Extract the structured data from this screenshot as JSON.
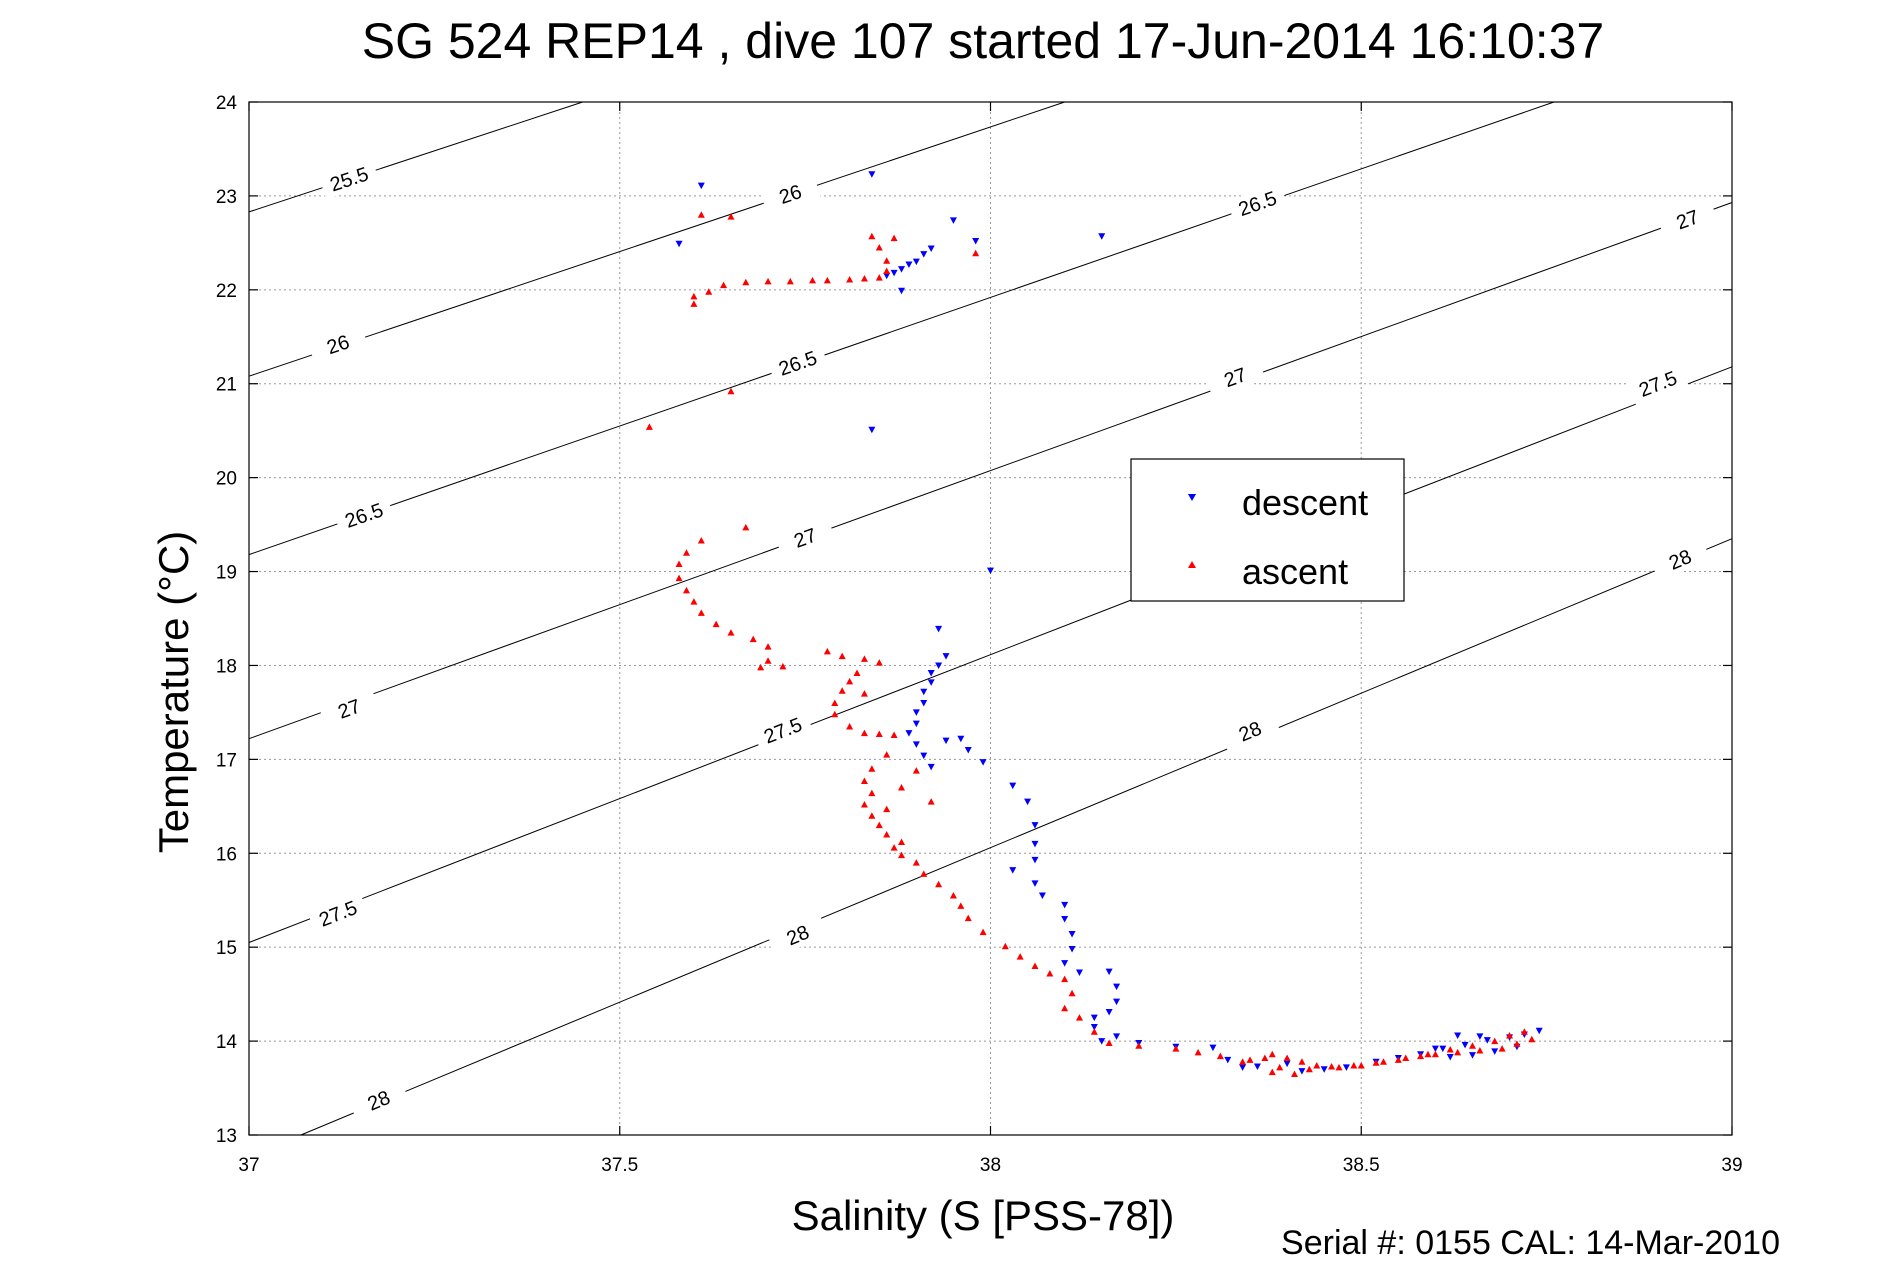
{
  "chart_data": {
    "type": "scatter",
    "title": "SG 524   REP14  , dive 107 started 17-Jun-2014 16:10:37",
    "xlabel": "Salinity (S [PSS-78])",
    "ylabel": "Temperature (°C)",
    "footer": "Serial #: 0155  CAL: 14-Mar-2010",
    "xlim": [
      37,
      39
    ],
    "ylim": [
      13,
      24
    ],
    "grid": true,
    "legend_position": "center-right",
    "xticks": [
      {
        "value": 37,
        "label": "37"
      },
      {
        "value": 37.5,
        "label": "37.5"
      },
      {
        "value": 38,
        "label": "38"
      },
      {
        "value": 38.5,
        "label": "38.5"
      },
      {
        "value": 39,
        "label": "39"
      }
    ],
    "yticks": [
      {
        "value": 13,
        "label": "13"
      },
      {
        "value": 14,
        "label": "14"
      },
      {
        "value": 15,
        "label": "15"
      },
      {
        "value": 16,
        "label": "16"
      },
      {
        "value": 17,
        "label": "17"
      },
      {
        "value": 18,
        "label": "18"
      },
      {
        "value": 19,
        "label": "19"
      },
      {
        "value": 20,
        "label": "20"
      },
      {
        "value": 21,
        "label": "21"
      },
      {
        "value": 22,
        "label": "22"
      },
      {
        "value": 23,
        "label": "23"
      },
      {
        "value": 24,
        "label": "24"
      }
    ],
    "density_contours": [
      {
        "value": "25.5",
        "points": [
          [
            37.0,
            22.83
          ],
          [
            37.45,
            24.0
          ]
        ],
        "labels": [
          [
            37.135,
            23.18
          ]
        ]
      },
      {
        "value": "26",
        "points": [
          [
            37.0,
            21.08
          ],
          [
            38.1,
            24.0
          ]
        ],
        "labels": [
          [
            37.12,
            21.42
          ],
          [
            37.73,
            23.02
          ]
        ]
      },
      {
        "value": "26.5",
        "points": [
          [
            37.0,
            19.18
          ],
          [
            38.76,
            24.0
          ]
        ],
        "labels": [
          [
            37.155,
            19.6
          ],
          [
            37.74,
            21.22
          ],
          [
            38.36,
            22.92
          ]
        ]
      },
      {
        "value": "27",
        "points": [
          [
            37.0,
            17.22
          ],
          [
            39.0,
            22.93
          ]
        ],
        "labels": [
          [
            37.135,
            17.54
          ],
          [
            37.75,
            19.36
          ],
          [
            38.33,
            21.07
          ],
          [
            38.94,
            22.75
          ]
        ]
      },
      {
        "value": "27.5",
        "points": [
          [
            37.0,
            15.05
          ],
          [
            39.0,
            21.18
          ]
        ],
        "labels": [
          [
            37.12,
            15.36
          ],
          [
            37.72,
            17.31
          ],
          [
            38.9,
            21.0
          ]
        ]
      },
      {
        "value": "28",
        "points": [
          [
            37.07,
            13.0
          ],
          [
            39.0,
            19.35
          ]
        ],
        "labels": [
          [
            37.175,
            13.37
          ],
          [
            37.74,
            15.13
          ],
          [
            38.35,
            17.3
          ],
          [
            38.93,
            19.13
          ]
        ]
      }
    ],
    "series": [
      {
        "name": "descent",
        "color": "#0000ff",
        "marker": "triangle-down",
        "points": [
          [
            37.58,
            22.49
          ],
          [
            37.61,
            23.11
          ],
          [
            37.84,
            23.23
          ],
          [
            37.86,
            22.15
          ],
          [
            37.87,
            22.18
          ],
          [
            37.88,
            22.22
          ],
          [
            37.89,
            22.27
          ],
          [
            37.9,
            22.3
          ],
          [
            37.91,
            22.38
          ],
          [
            37.92,
            22.44
          ],
          [
            37.95,
            22.74
          ],
          [
            37.98,
            22.52
          ],
          [
            38.15,
            22.57
          ],
          [
            37.88,
            21.99
          ],
          [
            37.84,
            20.51
          ],
          [
            37.96,
            17.22
          ],
          [
            37.93,
            18.39
          ],
          [
            38.0,
            19.01
          ],
          [
            37.94,
            18.1
          ],
          [
            37.93,
            18.0
          ],
          [
            37.92,
            17.92
          ],
          [
            37.92,
            17.82
          ],
          [
            37.91,
            17.72
          ],
          [
            37.91,
            17.6
          ],
          [
            37.9,
            17.5
          ],
          [
            37.9,
            17.38
          ],
          [
            37.89,
            17.28
          ],
          [
            37.9,
            17.16
          ],
          [
            37.91,
            17.04
          ],
          [
            37.92,
            16.92
          ],
          [
            37.94,
            17.2
          ],
          [
            37.97,
            17.1
          ],
          [
            37.99,
            16.97
          ],
          [
            38.03,
            16.72
          ],
          [
            38.05,
            16.55
          ],
          [
            38.06,
            16.3
          ],
          [
            38.06,
            16.1
          ],
          [
            38.06,
            15.93
          ],
          [
            38.03,
            15.82
          ],
          [
            38.06,
            15.68
          ],
          [
            38.07,
            15.55
          ],
          [
            38.1,
            15.45
          ],
          [
            38.1,
            15.3
          ],
          [
            38.11,
            15.14
          ],
          [
            38.11,
            14.98
          ],
          [
            38.1,
            14.83
          ],
          [
            38.12,
            14.73
          ],
          [
            38.16,
            14.74
          ],
          [
            38.17,
            14.58
          ],
          [
            38.17,
            14.42
          ],
          [
            38.16,
            14.31
          ],
          [
            38.14,
            14.25
          ],
          [
            38.14,
            14.15
          ],
          [
            38.15,
            14.0
          ],
          [
            38.17,
            14.05
          ],
          [
            38.2,
            13.98
          ],
          [
            38.25,
            13.94
          ],
          [
            38.3,
            13.93
          ],
          [
            38.32,
            13.8
          ],
          [
            38.34,
            13.72
          ],
          [
            38.36,
            13.73
          ],
          [
            38.4,
            13.76
          ],
          [
            38.42,
            13.68
          ],
          [
            38.45,
            13.7
          ],
          [
            38.48,
            13.72
          ],
          [
            38.52,
            13.78
          ],
          [
            38.55,
            13.82
          ],
          [
            38.58,
            13.86
          ],
          [
            38.61,
            13.92
          ],
          [
            38.64,
            13.96
          ],
          [
            38.67,
            14.01
          ],
          [
            38.7,
            14.04
          ],
          [
            38.72,
            14.07
          ],
          [
            38.74,
            14.11
          ],
          [
            38.71,
            13.94
          ],
          [
            38.68,
            13.89
          ],
          [
            38.65,
            13.85
          ],
          [
            38.62,
            13.83
          ],
          [
            38.6,
            13.92
          ],
          [
            38.63,
            14.06
          ],
          [
            38.66,
            14.05
          ]
        ]
      },
      {
        "name": "ascent",
        "color": "#ff0000",
        "marker": "triangle-up",
        "points": [
          [
            37.61,
            22.8
          ],
          [
            37.65,
            22.78
          ],
          [
            37.6,
            21.85
          ],
          [
            37.6,
            21.93
          ],
          [
            37.62,
            21.98
          ],
          [
            37.64,
            22.05
          ],
          [
            37.67,
            22.08
          ],
          [
            37.7,
            22.09
          ],
          [
            37.73,
            22.09
          ],
          [
            37.76,
            22.1
          ],
          [
            37.78,
            22.1
          ],
          [
            37.81,
            22.11
          ],
          [
            37.83,
            22.12
          ],
          [
            37.85,
            22.13
          ],
          [
            37.86,
            22.2
          ],
          [
            37.86,
            22.31
          ],
          [
            37.84,
            22.57
          ],
          [
            37.85,
            22.45
          ],
          [
            37.87,
            22.55
          ],
          [
            37.98,
            22.39
          ],
          [
            37.65,
            20.92
          ],
          [
            37.54,
            20.54
          ],
          [
            37.67,
            19.47
          ],
          [
            37.61,
            19.33
          ],
          [
            37.59,
            19.2
          ],
          [
            37.58,
            19.08
          ],
          [
            37.58,
            18.93
          ],
          [
            37.59,
            18.8
          ],
          [
            37.6,
            18.68
          ],
          [
            37.61,
            18.56
          ],
          [
            37.63,
            18.44
          ],
          [
            37.65,
            18.35
          ],
          [
            37.68,
            18.28
          ],
          [
            37.7,
            18.2
          ],
          [
            37.7,
            18.05
          ],
          [
            37.69,
            17.98
          ],
          [
            37.72,
            17.99
          ],
          [
            37.78,
            18.15
          ],
          [
            37.8,
            18.1
          ],
          [
            37.83,
            18.07
          ],
          [
            37.82,
            17.92
          ],
          [
            37.81,
            17.83
          ],
          [
            37.8,
            17.73
          ],
          [
            37.79,
            17.6
          ],
          [
            37.79,
            17.48
          ],
          [
            37.81,
            17.35
          ],
          [
            37.83,
            17.28
          ],
          [
            37.85,
            17.27
          ],
          [
            37.87,
            17.26
          ],
          [
            37.85,
            18.03
          ],
          [
            37.83,
            17.7
          ],
          [
            37.86,
            17.05
          ],
          [
            37.84,
            16.9
          ],
          [
            37.83,
            16.77
          ],
          [
            37.84,
            16.64
          ],
          [
            37.83,
            16.52
          ],
          [
            37.84,
            16.4
          ],
          [
            37.85,
            16.3
          ],
          [
            37.86,
            16.2
          ],
          [
            37.87,
            16.06
          ],
          [
            37.88,
            15.98
          ],
          [
            37.9,
            15.9
          ],
          [
            37.91,
            15.78
          ],
          [
            37.93,
            15.67
          ],
          [
            37.95,
            15.55
          ],
          [
            37.96,
            15.44
          ],
          [
            37.97,
            15.31
          ],
          [
            37.99,
            15.16
          ],
          [
            38.02,
            15.01
          ],
          [
            38.04,
            14.9
          ],
          [
            38.06,
            14.8
          ],
          [
            38.08,
            14.72
          ],
          [
            38.1,
            14.66
          ],
          [
            38.11,
            14.51
          ],
          [
            38.1,
            14.35
          ],
          [
            38.12,
            14.25
          ],
          [
            38.14,
            14.1
          ],
          [
            38.16,
            13.98
          ],
          [
            38.2,
            13.95
          ],
          [
            38.25,
            13.92
          ],
          [
            38.28,
            13.88
          ],
          [
            38.31,
            13.84
          ],
          [
            38.34,
            13.78
          ],
          [
            38.37,
            13.82
          ],
          [
            38.39,
            13.72
          ],
          [
            38.38,
            13.67
          ],
          [
            38.41,
            13.65
          ],
          [
            38.43,
            13.7
          ],
          [
            38.47,
            13.72
          ],
          [
            38.5,
            13.74
          ],
          [
            38.53,
            13.78
          ],
          [
            38.56,
            13.82
          ],
          [
            38.59,
            13.86
          ],
          [
            38.62,
            13.91
          ],
          [
            38.65,
            13.95
          ],
          [
            38.68,
            14.0
          ],
          [
            38.7,
            14.06
          ],
          [
            38.72,
            14.1
          ],
          [
            38.73,
            14.02
          ],
          [
            38.71,
            13.97
          ],
          [
            38.69,
            13.92
          ],
          [
            38.66,
            13.9
          ],
          [
            38.63,
            13.88
          ],
          [
            38.6,
            13.86
          ],
          [
            38.58,
            13.84
          ],
          [
            38.55,
            13.8
          ],
          [
            38.52,
            13.77
          ],
          [
            38.49,
            13.74
          ],
          [
            38.46,
            13.73
          ],
          [
            38.44,
            13.74
          ],
          [
            38.42,
            13.78
          ],
          [
            38.4,
            13.82
          ],
          [
            38.38,
            13.86
          ],
          [
            38.35,
            13.8
          ],
          [
            37.88,
            16.12
          ],
          [
            37.92,
            16.55
          ],
          [
            37.9,
            16.88
          ],
          [
            37.88,
            16.7
          ],
          [
            37.86,
            16.47
          ]
        ]
      }
    ]
  }
}
